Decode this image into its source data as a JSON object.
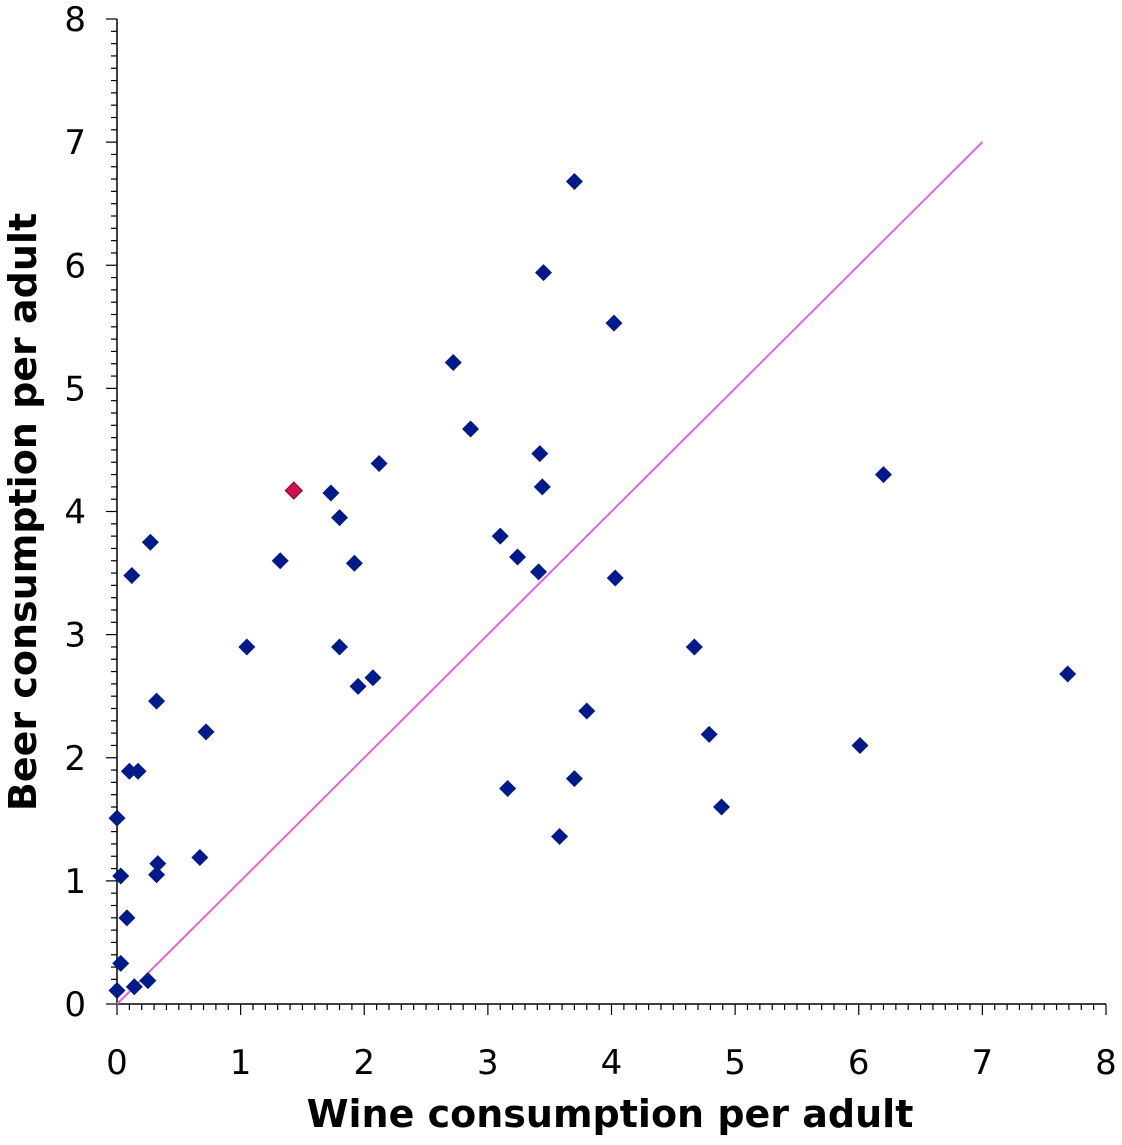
{
  "chart_data": {
    "type": "scatter",
    "xlabel": "Wine consumption per adult",
    "ylabel": "Beer consumption per adult",
    "xlim": [
      0,
      8
    ],
    "ylim": [
      0,
      8
    ],
    "xticks": [
      "0",
      "1",
      "2",
      "3",
      "4",
      "5",
      "6",
      "7",
      "8"
    ],
    "yticks": [
      "0",
      "1",
      "2",
      "3",
      "4",
      "5",
      "6",
      "7",
      "8"
    ],
    "grid": false,
    "legend": "none",
    "reference_line": {
      "from": [
        0,
        0
      ],
      "to": [
        7,
        7
      ],
      "color": "#e066e0"
    },
    "series": [
      {
        "color": "#001a8c",
        "marker": "diamond",
        "points": [
          [
            3.7,
            6.68
          ],
          [
            3.45,
            5.94
          ],
          [
            4.02,
            5.53
          ],
          [
            2.72,
            5.21
          ],
          [
            2.86,
            4.67
          ],
          [
            3.42,
            4.47
          ],
          [
            2.12,
            4.39
          ],
          [
            6.2,
            4.3
          ],
          [
            3.44,
            4.2
          ],
          [
            1.73,
            4.15
          ],
          [
            1.8,
            3.95
          ],
          [
            3.1,
            3.8
          ],
          [
            0.27,
            3.75
          ],
          [
            3.24,
            3.63
          ],
          [
            1.32,
            3.6
          ],
          [
            1.92,
            3.58
          ],
          [
            3.41,
            3.51
          ],
          [
            0.12,
            3.48
          ],
          [
            4.03,
            3.46
          ],
          [
            1.05,
            2.9
          ],
          [
            1.8,
            2.9
          ],
          [
            4.67,
            2.9
          ],
          [
            7.69,
            2.68
          ],
          [
            2.07,
            2.65
          ],
          [
            1.95,
            2.58
          ],
          [
            0.32,
            2.46
          ],
          [
            3.8,
            2.38
          ],
          [
            0.72,
            2.21
          ],
          [
            4.79,
            2.19
          ],
          [
            6.01,
            2.1
          ],
          [
            0.1,
            1.89
          ],
          [
            0.17,
            1.89
          ],
          [
            3.7,
            1.83
          ],
          [
            3.16,
            1.75
          ],
          [
            4.89,
            1.6
          ],
          [
            0.0,
            1.51
          ],
          [
            3.58,
            1.36
          ],
          [
            0.67,
            1.19
          ],
          [
            0.33,
            1.14
          ],
          [
            0.32,
            1.05
          ],
          [
            0.03,
            1.04
          ],
          [
            0.08,
            0.7
          ],
          [
            0.03,
            0.33
          ],
          [
            0.25,
            0.19
          ],
          [
            0.14,
            0.14
          ],
          [
            0.0,
            0.11
          ]
        ]
      },
      {
        "color": "#d0104c",
        "marker": "diamond",
        "points": [
          [
            1.43,
            4.17
          ]
        ]
      }
    ]
  }
}
